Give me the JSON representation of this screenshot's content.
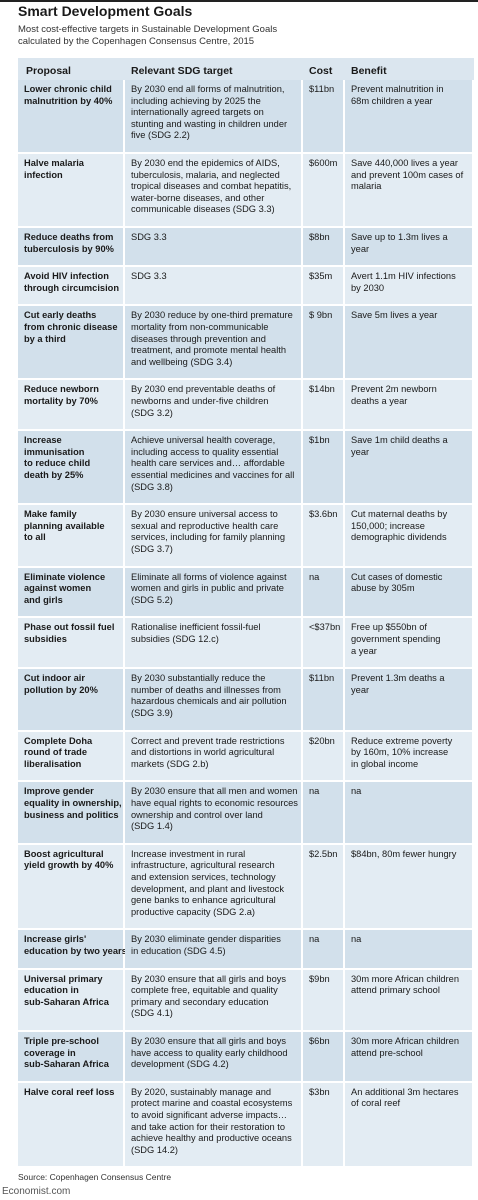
{
  "header": {
    "title": "Smart Development Goals",
    "subtitle": [
      "Most cost-effective targets in Sustainable Development Goals",
      "calculated by the Copenhagen Consensus Centre, 2015"
    ]
  },
  "table": {
    "columns": [
      "Proposal",
      "Relevant SDG target",
      "Cost",
      "Benefit"
    ],
    "rows": [
      [
        [
          "Lower chronic child",
          "malnutrition by 40%"
        ],
        [
          "By 2030 end all forms of malnutrition,",
          "including achieving by 2025 the",
          "internationally agreed targets on",
          "stunting and wasting in children under",
          "five (SDG 2.2)"
        ],
        [
          "$11bn"
        ],
        [
          "Prevent malnutrition in",
          "68m children a year"
        ]
      ],
      [
        [
          "Halve malaria",
          "infection"
        ],
        [
          "By 2030 end the epidemics of AIDS,",
          "tuberculosis, malaria, and neglected",
          "tropical diseases and combat hepatitis,",
          "water-borne diseases, and other",
          "communicable diseases (SDG 3.3)"
        ],
        [
          "$600m"
        ],
        [
          "Save 440,000 lives a year",
          "and prevent 100m cases of",
          "malaria"
        ]
      ],
      [
        [
          "Reduce deaths from",
          "tuberculosis by 90%"
        ],
        [
          "SDG 3.3"
        ],
        [
          "$8bn"
        ],
        [
          "Save up to 1.3m lives a",
          "year"
        ]
      ],
      [
        [
          "Avoid HIV infection",
          "through circumcision"
        ],
        [
          "SDG 3.3"
        ],
        [
          "$35m"
        ],
        [
          "Avert 1.1m HIV infections",
          "by 2030"
        ]
      ],
      [
        [
          "Cut early deaths",
          "from chronic disease",
          "by a third"
        ],
        [
          "By 2030 reduce by one-third premature",
          "mortality from non-communicable",
          "diseases through prevention and",
          "treatment, and promote mental health",
          "and wellbeing (SDG 3.4)"
        ],
        [
          "$ 9bn"
        ],
        [
          "Save 5m lives a year"
        ]
      ],
      [
        [
          "Reduce newborn",
          "mortality by 70%"
        ],
        [
          "By 2030 end preventable deaths of",
          "newborns and under-five children",
          "(SDG 3.2)"
        ],
        [
          "$14bn"
        ],
        [
          "Prevent 2m newborn",
          "deaths a year"
        ]
      ],
      [
        [
          "Increase",
          "immunisation",
          "to reduce child",
          "death by 25%"
        ],
        [
          "Achieve universal health coverage,",
          "including access to quality essential",
          "health care services and… affordable",
          "essential medicines and vaccines for all",
          "(SDG 3.8)"
        ],
        [
          "$1bn"
        ],
        [
          "Save 1m child deaths a",
          "year"
        ]
      ],
      [
        [
          "Make family",
          "planning available",
          "to all"
        ],
        [
          "By 2030 ensure universal access to",
          "sexual and reproductive health care",
          "services, including for family planning",
          "(SDG 3.7)"
        ],
        [
          "$3.6bn"
        ],
        [
          "Cut maternal deaths by",
          "150,000; increase",
          "demographic dividends"
        ]
      ],
      [
        [
          "Eliminate violence",
          "against women",
          "and girls"
        ],
        [
          "Eliminate all forms of violence against",
          "women and girls in public and private",
          "(SDG 5.2)"
        ],
        [
          "na"
        ],
        [
          "Cut cases of domestic",
          "abuse by 305m"
        ]
      ],
      [
        [
          "Phase out fossil fuel",
          "subsidies"
        ],
        [
          "Rationalise inefficient fossil-fuel",
          "subsidies (SDG 12.c)"
        ],
        [
          "<$37bn"
        ],
        [
          "Free up $550bn of",
          "government spending",
          "a year"
        ]
      ],
      [
        [
          "Cut indoor air",
          "pollution by 20%"
        ],
        [
          "By 2030 substantially reduce the",
          "number of deaths and illnesses from",
          "hazardous chemicals and air pollution",
          "(SDG 3.9)"
        ],
        [
          "$11bn"
        ],
        [
          "Prevent 1.3m deaths a",
          "year"
        ]
      ],
      [
        [
          "Complete Doha",
          "round of trade",
          "liberalisation"
        ],
        [
          "Correct and prevent trade restrictions",
          "and distortions in world agricultural",
          "markets (SDG 2.b)"
        ],
        [
          "$20bn"
        ],
        [
          "Reduce extreme poverty",
          "by 160m, 10% increase",
          "in global income"
        ]
      ],
      [
        [
          "Improve gender",
          "equality in ownership,",
          "business and politics"
        ],
        [
          "By 2030 ensure that all men and women",
          "have equal rights to economic resources",
          "ownership and control over land",
          "(SDG 1.4)"
        ],
        [
          "na"
        ],
        [
          "na"
        ]
      ],
      [
        [
          "Boost agricultural",
          "yield growth by 40%"
        ],
        [
          "Increase investment in rural",
          "infrastructure, agricultural research",
          "and extension services, technology",
          "development, and plant and livestock",
          "gene banks to enhance agricultural",
          "productive capacity (SDG 2.a)"
        ],
        [
          "$2.5bn"
        ],
        [
          "$84bn, 80m fewer hungry"
        ]
      ],
      [
        [
          "Increase girls'",
          "education by two years"
        ],
        [
          "By 2030 eliminate gender disparities",
          "in education (SDG 4.5)"
        ],
        [
          "na"
        ],
        [
          "na"
        ]
      ],
      [
        [
          "Universal primary",
          "education in",
          "sub-Saharan Africa"
        ],
        [
          "By 2030 ensure that all girls and boys",
          "complete free, equitable and quality",
          "primary and secondary education",
          "(SDG 4.1)"
        ],
        [
          "$9bn"
        ],
        [
          "30m more African children",
          "attend primary school"
        ]
      ],
      [
        [
          "Triple pre-school",
          "coverage in",
          "sub-Saharan Africa"
        ],
        [
          "By 2030 ensure that all girls and boys",
          "have access to quality early childhood",
          "development (SDG 4.2)"
        ],
        [
          "$6bn"
        ],
        [
          "30m more African children",
          "attend pre-school"
        ]
      ],
      [
        [
          "Halve coral reef loss"
        ],
        [
          "By 2020, sustainably manage and",
          "protect marine and coastal ecosystems",
          "to avoid significant adverse impacts…",
          "and take action for their restoration to",
          "achieve healthy and productive oceans",
          "(SDG 14.2)"
        ],
        [
          "$3bn"
        ],
        [
          "An additional 3m hectares",
          "of coral reef"
        ]
      ]
    ]
  },
  "footer": {
    "source": "Source: Copenhagen Consensus Centre",
    "logo": "Economist.com"
  }
}
